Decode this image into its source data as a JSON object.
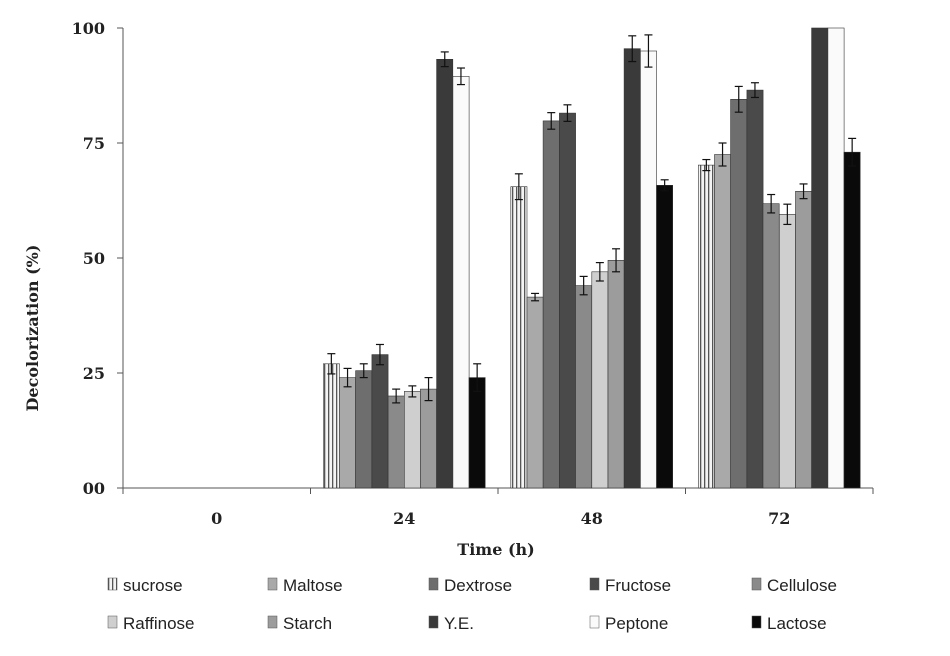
{
  "chart_data": {
    "type": "bar",
    "title": "",
    "xlabel": "Time (h)",
    "ylabel": "Decolorization (%)",
    "ylim": [
      0,
      100
    ],
    "yticks": [
      0,
      25,
      50,
      75,
      100
    ],
    "ytick_labels": [
      "00",
      "25",
      "50",
      "75",
      "100"
    ],
    "categories": [
      "0",
      "24",
      "48",
      "72"
    ],
    "series": [
      {
        "name": "sucrose",
        "values": [
          0,
          27,
          65.5,
          70.2
        ],
        "errors": [
          0,
          2.2,
          2.8,
          1.2
        ],
        "color": "#f2f2f2",
        "pattern": "striped"
      },
      {
        "name": "Maltose",
        "values": [
          0,
          24,
          41.5,
          72.5
        ],
        "errors": [
          0,
          2.0,
          0.8,
          2.5
        ],
        "color": "#a9a9a9"
      },
      {
        "name": "Dextrose",
        "values": [
          0,
          25.5,
          79.8,
          84.5
        ],
        "errors": [
          0,
          1.5,
          1.8,
          2.8
        ],
        "color": "#6e6e6e"
      },
      {
        "name": "Fructose",
        "values": [
          0,
          29,
          81.5,
          86.5
        ],
        "errors": [
          0,
          2.2,
          1.8,
          1.6
        ],
        "color": "#4a4a4a"
      },
      {
        "name": "Cellulose",
        "values": [
          0,
          20,
          44,
          61.8
        ],
        "errors": [
          0,
          1.5,
          2.0,
          2.0
        ],
        "color": "#8a8a8a"
      },
      {
        "name": "Raffinose",
        "values": [
          0,
          21,
          47,
          59.5
        ],
        "errors": [
          0,
          1.2,
          2.0,
          2.2
        ],
        "color": "#cfcfcf"
      },
      {
        "name": "Starch",
        "values": [
          0,
          21.5,
          49.5,
          64.5
        ],
        "errors": [
          0,
          2.5,
          2.5,
          1.6
        ],
        "color": "#9c9c9c"
      },
      {
        "name": "Y.E.",
        "values": [
          0,
          93.2,
          95.5,
          100
        ],
        "errors": [
          0,
          1.6,
          2.8,
          0
        ],
        "color": "#3a3a3a"
      },
      {
        "name": "Peptone",
        "values": [
          0,
          89.5,
          95,
          100
        ],
        "errors": [
          0,
          1.8,
          3.5,
          0
        ],
        "color": "#fafafa"
      },
      {
        "name": "Lactose",
        "values": [
          0,
          24,
          65.8,
          73
        ],
        "errors": [
          0,
          3.0,
          1.2,
          3.0
        ],
        "color": "#0a0a0a"
      }
    ],
    "grid": false,
    "legend_position": "bottom"
  }
}
